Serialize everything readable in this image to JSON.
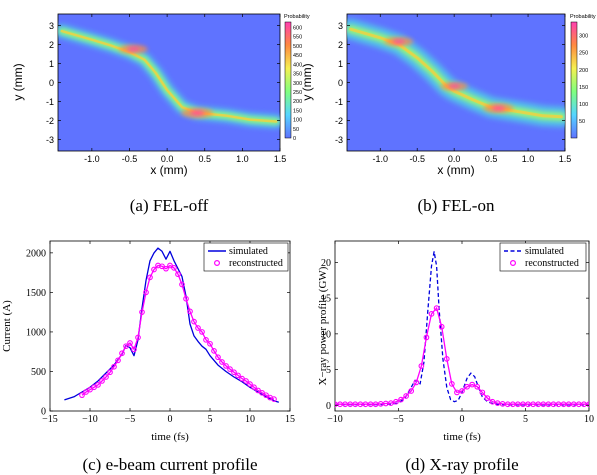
{
  "chart_data": [
    {
      "id": "a",
      "type": "heatmap",
      "caption": "(a)  FEL-off",
      "xlabel": "x  (mm)",
      "ylabel": "y  (mm)",
      "xlim": [
        -1.45,
        1.5
      ],
      "ylim": [
        -3.6,
        3.6
      ],
      "xticks": [
        "-1.0",
        "-0.5",
        "0.0",
        "0.5",
        "1.0",
        "1.5"
      ],
      "xtick_values": [
        -1.0,
        -0.5,
        0.0,
        0.5,
        1.0,
        1.5
      ],
      "yticks": [
        "3",
        "2",
        "1",
        "0",
        "-1",
        "-2",
        "-3"
      ],
      "ytick_values": [
        3,
        2,
        1,
        0,
        -1,
        -2,
        -3
      ],
      "colorbar_label": "Probability",
      "colorbar_ticks": [
        "600",
        "550",
        "500",
        "450",
        "400",
        "350",
        "300",
        "250",
        "200",
        "150",
        "100",
        "50",
        "0"
      ],
      "colorbar_values": [
        600,
        550,
        500,
        450,
        400,
        350,
        300,
        250,
        200,
        150,
        100,
        50,
        0
      ],
      "colorbar_range": [
        0,
        630
      ],
      "background_color": "#5f73ff",
      "trace": [
        [
          -1.4,
          2.7
        ],
        [
          -1.0,
          2.25
        ],
        [
          -0.75,
          1.95
        ],
        [
          -0.5,
          1.6
        ],
        [
          -0.3,
          1.2
        ],
        [
          -0.15,
          0.5
        ],
        [
          0.0,
          -0.4
        ],
        [
          0.2,
          -1.3
        ],
        [
          0.4,
          -1.6
        ],
        [
          0.8,
          -1.75
        ],
        [
          1.1,
          -1.95
        ],
        [
          1.45,
          -2.05
        ]
      ],
      "hot_spots": [
        [
          -0.45,
          1.75,
          0.9
        ],
        [
          0.4,
          -1.6,
          1.0
        ]
      ]
    },
    {
      "id": "b",
      "type": "heatmap",
      "caption": "(b)  FEL-on",
      "xlabel": "x  (mm)",
      "ylabel": "y  (mm)",
      "xlim": [
        -1.45,
        1.5
      ],
      "ylim": [
        -3.6,
        3.6
      ],
      "xticks": [
        "-1.0",
        "-0.5",
        "0.0",
        "0.5",
        "1.0",
        "1.5"
      ],
      "xtick_values": [
        -1.0,
        -0.5,
        0.0,
        0.5,
        1.0,
        1.5
      ],
      "yticks": [
        "3",
        "2",
        "1",
        "0",
        "-1",
        "-2",
        "-3"
      ],
      "ytick_values": [
        3,
        2,
        1,
        0,
        -1,
        -2,
        -3
      ],
      "colorbar_label": "Probability",
      "colorbar_ticks": [
        "300",
        "250",
        "200",
        "150",
        "100",
        "50"
      ],
      "colorbar_values": [
        300,
        250,
        200,
        150,
        100,
        50
      ],
      "colorbar_range": [
        0,
        340
      ],
      "background_color": "#5f73ff",
      "trace": [
        [
          -1.4,
          2.8
        ],
        [
          -1.0,
          2.35
        ],
        [
          -0.75,
          2.0
        ],
        [
          -0.5,
          1.3
        ],
        [
          -0.3,
          0.6
        ],
        [
          -0.1,
          -0.2
        ],
        [
          0.0,
          -0.45
        ],
        [
          0.25,
          -0.9
        ],
        [
          0.5,
          -1.3
        ],
        [
          0.9,
          -1.55
        ],
        [
          1.2,
          -1.75
        ],
        [
          1.45,
          -1.8
        ]
      ],
      "hot_spots": [
        [
          -0.75,
          2.15,
          0.9
        ],
        [
          0.0,
          -0.2,
          0.85
        ],
        [
          0.6,
          -1.35,
          0.95
        ]
      ]
    },
    {
      "id": "c",
      "type": "line",
      "caption": "(c)  e-beam current profile",
      "xlabel": "time (fs)",
      "ylabel": "Current (A)",
      "xlim": [
        -15,
        15
      ],
      "ylim": [
        0,
        2150
      ],
      "xticks": [
        "−15",
        "−10",
        "−5",
        "0",
        "5",
        "10",
        "15"
      ],
      "xtick_values": [
        -15,
        -10,
        -5,
        0,
        5,
        10,
        15
      ],
      "yticks": [
        "0",
        "500",
        "1000",
        "1500",
        "2000"
      ],
      "ytick_values": [
        0,
        500,
        1000,
        1500,
        2000
      ],
      "series": [
        {
          "name": "simulated",
          "color": "#0000dd",
          "style": "solid",
          "x": [
            -13.2,
            -12,
            -11,
            -10,
            -9,
            -8,
            -7,
            -6,
            -5.5,
            -5,
            -4.5,
            -4,
            -3.5,
            -3,
            -2.5,
            -2,
            -1.5,
            -1,
            -0.5,
            0,
            0.5,
            1,
            1.5,
            2,
            2.5,
            3,
            3.5,
            4,
            4.5,
            5,
            6,
            7,
            8,
            9,
            10,
            11,
            12,
            13,
            13.6
          ],
          "y": [
            140,
            180,
            240,
            300,
            380,
            480,
            580,
            720,
            830,
            800,
            700,
            900,
            1300,
            1650,
            1900,
            2000,
            2060,
            2020,
            1920,
            2020,
            1900,
            1800,
            1700,
            1450,
            1100,
            950,
            880,
            820,
            780,
            700,
            580,
            500,
            430,
            370,
            300,
            240,
            180,
            130,
            110
          ]
        },
        {
          "name": "reconstructed",
          "color": "#ff00ff",
          "style": "circles",
          "x": [
            -11,
            -10.5,
            -10,
            -9.5,
            -9,
            -8.5,
            -8,
            -7.5,
            -7,
            -6.5,
            -6,
            -5.5,
            -5,
            -4.5,
            -4,
            -3.5,
            -3,
            -2.5,
            -2,
            -1.5,
            -1,
            -0.5,
            0,
            0.5,
            1,
            1.5,
            2,
            2.5,
            3,
            3.5,
            4,
            4.5,
            5,
            5.5,
            6,
            6.5,
            7,
            7.5,
            8,
            8.5,
            9,
            9.5,
            10,
            10.5,
            11,
            11.5,
            12,
            12.5,
            13
          ],
          "y": [
            200,
            240,
            270,
            300,
            330,
            380,
            430,
            490,
            560,
            640,
            730,
            820,
            860,
            780,
            930,
            1250,
            1500,
            1690,
            1790,
            1840,
            1830,
            1800,
            1840,
            1810,
            1730,
            1600,
            1420,
            1260,
            1130,
            1050,
            1000,
            900,
            850,
            760,
            680,
            620,
            570,
            530,
            490,
            450,
            410,
            380,
            340,
            300,
            260,
            230,
            200,
            170,
            150
          ]
        }
      ],
      "legend_position": "top-right"
    },
    {
      "id": "d",
      "type": "line",
      "caption": "(d)  X-ray profile",
      "xlabel": "time (fs)",
      "ylabel": "X−ray power profile (GW)",
      "xlim": [
        -10,
        10
      ],
      "ylim": [
        -0.8,
        23
      ],
      "xticks": [
        "−10",
        "−5",
        "0",
        "5",
        "10"
      ],
      "xtick_values": [
        -10,
        -5,
        0,
        5,
        10
      ],
      "yticks": [
        "0",
        "5",
        "10",
        "15",
        "20"
      ],
      "ytick_values": [
        0,
        5,
        10,
        15,
        20
      ],
      "series": [
        {
          "name": "simulated",
          "color": "#0000dd",
          "style": "dashed",
          "x": [
            -10,
            -6,
            -5,
            -4.5,
            -4,
            -3.7,
            -3.3,
            -3,
            -2.7,
            -2.4,
            -2.2,
            -2,
            -1.8,
            -1.5,
            -1.2,
            -0.9,
            -0.6,
            -0.3,
            0,
            0.4,
            0.7,
            1,
            1.3,
            1.6,
            2,
            2.5,
            3,
            4,
            5,
            10
          ],
          "y": [
            0.1,
            0.1,
            0.3,
            1.0,
            2.5,
            3.5,
            3.0,
            6.0,
            13.0,
            19.5,
            21.5,
            19.5,
            13.5,
            6.5,
            2.5,
            0.8,
            0.5,
            0.7,
            1.8,
            3.8,
            4.5,
            4.0,
            2.5,
            1.2,
            0.5,
            0.2,
            0.1,
            0.05,
            0.05,
            0.05
          ]
        },
        {
          "name": "reconstructed",
          "color": "#ff00ff",
          "style": "circles",
          "x": [
            -10,
            -9.6,
            -9.2,
            -8.8,
            -8.4,
            -8,
            -7.6,
            -7.2,
            -6.8,
            -6.4,
            -6,
            -5.6,
            -5.2,
            -4.8,
            -4.4,
            -4,
            -3.6,
            -3.2,
            -2.8,
            -2.4,
            -2,
            -1.6,
            -1.2,
            -0.8,
            -0.4,
            0,
            0.4,
            0.8,
            1.2,
            1.6,
            2,
            2.4,
            2.8,
            3.2,
            3.6,
            4,
            4.4,
            4.8,
            5.2,
            5.6,
            6,
            6.4,
            6.8,
            7.2,
            7.6,
            8,
            8.4,
            8.8,
            9.2,
            9.6,
            10
          ],
          "y": [
            0.15,
            0.15,
            0.15,
            0.15,
            0.15,
            0.15,
            0.15,
            0.15,
            0.15,
            0.2,
            0.25,
            0.3,
            0.5,
            0.8,
            1.3,
            2.0,
            3.2,
            5.5,
            9.5,
            12.8,
            13.6,
            11.0,
            6.5,
            3.0,
            1.8,
            2.0,
            2.6,
            2.9,
            2.6,
            1.8,
            1.0,
            0.5,
            0.3,
            0.2,
            0.15,
            0.15,
            0.15,
            0.15,
            0.15,
            0.15,
            0.15,
            0.15,
            0.15,
            0.15,
            0.15,
            0.15,
            0.15,
            0.15,
            0.15,
            0.15,
            0.15
          ]
        }
      ],
      "legend_position": "top-right"
    }
  ]
}
